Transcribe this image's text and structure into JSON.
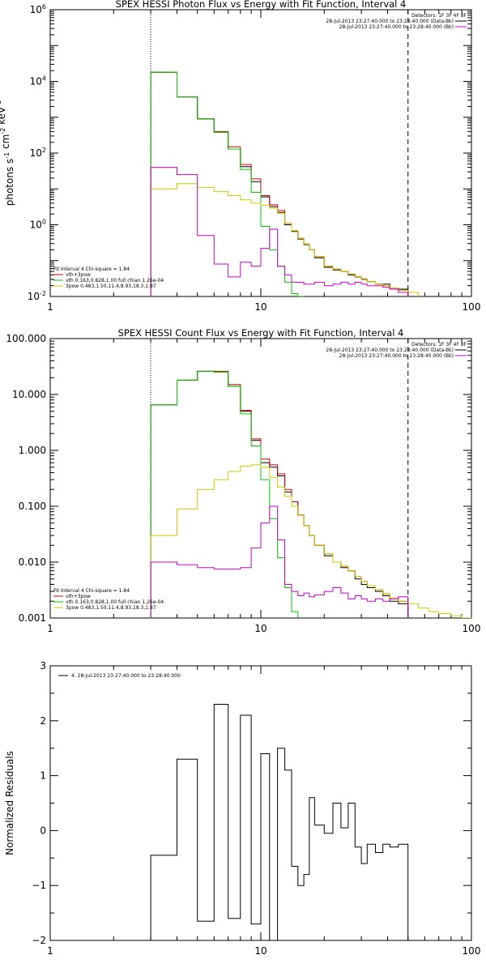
{
  "chart_data": [
    {
      "type": "line",
      "title": "SPEX HESSI Photon Flux vs Energy with Fit Function, Interval 4",
      "ylabel": "photons s^-1 cm^-2 keV^-1",
      "xlabel": "",
      "xscale": "log",
      "yscale": "log",
      "xlim": [
        1,
        100
      ],
      "ylim": [
        0.01,
        1000000
      ],
      "x_ticks": [
        {
          "v": 1,
          "label": "1"
        },
        {
          "v": 10,
          "label": "10"
        },
        {
          "v": 100,
          "label": "100"
        }
      ],
      "y_ticks": [
        {
          "v": 0.01,
          "label": "10^-2"
        },
        {
          "v": 1,
          "label": "10^0"
        },
        {
          "v": 100,
          "label": "10^2"
        },
        {
          "v": 10000,
          "label": "10^4"
        },
        {
          "v": 1000000,
          "label": "10^6"
        }
      ],
      "vlines": [
        {
          "x": 3,
          "style": "dotted",
          "color": "#000000"
        },
        {
          "x": 50,
          "style": "dashed",
          "color": "#000000"
        }
      ],
      "legend_tr": [
        "Detectors: 1F 3F 4F 8F",
        "28-Jul-2013 23:27:40.000 to 23:28:40.000 (Data-Bk)",
        "28-Jul-2013 23:27:40.000 to 23:28:40.000 (Bk)"
      ],
      "legend_bl": [
        "Fit Interval 4   Chi-square = 1.84",
        "vth+3pow",
        "vth 0.163,0.828,1.00  full chian 1.26e-04",
        "3pow 0.483,1.50,11.4,8.93,18.3,1.87"
      ],
      "series": [
        {
          "name": "Data-Bk",
          "color": "#000000",
          "edges": [
            3,
            4,
            5,
            6,
            7,
            8,
            9,
            10,
            11,
            12,
            13,
            14,
            15,
            16,
            17,
            18,
            20,
            22,
            24,
            26,
            28,
            30,
            32,
            35,
            38,
            41,
            45,
            50
          ],
          "values": [
            18000,
            3700,
            900,
            380,
            130,
            42,
            16,
            6,
            3.2,
            2.2,
            1,
            0.65,
            0.4,
            0.28,
            0.2,
            0.12,
            0.065,
            0.055,
            0.05,
            0.04,
            0.035,
            0.03,
            0.026,
            0.022,
            0.022,
            0.016,
            0.016
          ]
        },
        {
          "name": "vth+3pow",
          "color": "#cc0000",
          "edges": [
            3,
            4,
            5,
            6,
            7,
            8,
            9,
            10,
            11,
            12,
            13,
            14,
            15,
            16,
            17,
            18,
            20,
            22,
            24,
            26,
            28,
            30,
            32,
            35,
            38,
            41,
            45,
            50
          ],
          "values": [
            18000,
            3700,
            900,
            400,
            150,
            48,
            19,
            6.5,
            3.6,
            2.5,
            1.1,
            0.68,
            0.42,
            0.29,
            0.2,
            0.13,
            0.07,
            0.058,
            0.05,
            0.042,
            0.036,
            0.031,
            0.026,
            0.022,
            0.02,
            0.017,
            0.015
          ]
        },
        {
          "name": "vth",
          "color": "#00cc00",
          "edges": [
            3,
            4,
            5,
            6,
            7,
            8,
            9,
            10,
            11,
            12,
            13,
            14,
            15,
            16
          ],
          "values": [
            18000,
            3700,
            900,
            380,
            130,
            35,
            8,
            0.9,
            0.2,
            0.07,
            0.025,
            0.012,
            0.006
          ]
        },
        {
          "name": "3pow",
          "color": "#cccc00",
          "edges": [
            3,
            4,
            5,
            6,
            7,
            8,
            9,
            10,
            11,
            12,
            13,
            14,
            15,
            16,
            17,
            18,
            20,
            22,
            24,
            26,
            28,
            30,
            32,
            35,
            38,
            41,
            45,
            50,
            56
          ],
          "values": [
            10,
            14,
            11,
            8.5,
            6.5,
            5,
            4,
            3.5,
            2.9,
            2.1,
            1.1,
            0.68,
            0.42,
            0.29,
            0.2,
            0.13,
            0.07,
            0.058,
            0.05,
            0.042,
            0.036,
            0.031,
            0.026,
            0.022,
            0.02,
            0.017,
            0.015,
            0.013
          ]
        },
        {
          "name": "Bk",
          "color": "#cc00cc",
          "edges": [
            3,
            4,
            5,
            6,
            7,
            8,
            9,
            10,
            11,
            12,
            13,
            14,
            15,
            16,
            17,
            18,
            20,
            22,
            24,
            26,
            28,
            30,
            32,
            35,
            38,
            41,
            45,
            50
          ],
          "values": [
            40,
            25,
            0.5,
            0.08,
            0.035,
            0.09,
            0.07,
            0.22,
            0.75,
            0.07,
            0.04,
            0.025,
            0.025,
            0.022,
            0.022,
            0.025,
            0.02,
            0.022,
            0.025,
            0.022,
            0.025,
            0.022,
            0.02,
            0.02,
            0.018,
            0.016,
            0.013
          ]
        }
      ]
    },
    {
      "type": "line",
      "title": "SPEX HESSI Count Flux vs Energy with Fit Function, Interval 4",
      "ylabel": "",
      "xlabel": "",
      "xscale": "log",
      "yscale": "log",
      "xlim": [
        1,
        100
      ],
      "ylim": [
        0.001,
        100
      ],
      "x_ticks": [
        {
          "v": 1,
          "label": "1"
        },
        {
          "v": 10,
          "label": "10"
        },
        {
          "v": 100,
          "label": "100"
        }
      ],
      "y_ticks": [
        {
          "v": 0.001,
          "label": "0.001"
        },
        {
          "v": 0.01,
          "label": "0.010"
        },
        {
          "v": 0.1,
          "label": "0.100"
        },
        {
          "v": 1,
          "label": "1.000"
        },
        {
          "v": 10,
          "label": "10.000"
        },
        {
          "v": 100,
          "label": "100.000"
        }
      ],
      "vlines": [
        {
          "x": 3,
          "style": "dotted",
          "color": "#000000"
        },
        {
          "x": 50,
          "style": "dashed",
          "color": "#000000"
        }
      ],
      "legend_tr": [
        "Detectors: 1F 3F 4F 8F",
        "28-Jul-2013 23:27:40.000 to 23:28:40.000 (Data-Bk)",
        "28-Jul-2013 23:27:40.000 to 23:28:40.000 (Bk)"
      ],
      "legend_bl": [
        "Fit Interval 4   Chi-square = 1.84",
        "vth+3pow",
        "vth 0.163,0.828,1.00  full chian 1.26e-04",
        "3pow 0.483,1.50,11.4,8.93,18.3,1.87"
      ],
      "series": [
        {
          "name": "Data-Bk",
          "color": "#000000",
          "edges": [
            3,
            4,
            5,
            6,
            7,
            8,
            9,
            10,
            11,
            12,
            13,
            14,
            15,
            16,
            17,
            18,
            20,
            22,
            24,
            26,
            28,
            30,
            32,
            35,
            38,
            41,
            45,
            50
          ],
          "values": [
            6.5,
            18,
            26,
            25,
            14,
            5,
            1.5,
            0.6,
            0.5,
            0.35,
            0.18,
            0.12,
            0.07,
            0.045,
            0.03,
            0.02,
            0.013,
            0.01,
            0.008,
            0.007,
            0.005,
            0.004,
            0.0035,
            0.003,
            0.0025,
            0.002,
            0.0018
          ]
        },
        {
          "name": "vth+3pow",
          "color": "#cc0000",
          "edges": [
            3,
            4,
            5,
            6,
            7,
            8,
            9,
            10,
            11,
            12,
            13,
            14,
            15,
            16,
            17,
            18,
            20,
            22,
            24,
            26,
            28,
            30,
            32,
            35,
            38,
            41,
            45,
            50
          ],
          "values": [
            6.5,
            18,
            26,
            26,
            15,
            5.2,
            1.6,
            0.7,
            0.55,
            0.38,
            0.2,
            0.12,
            0.07,
            0.045,
            0.03,
            0.02,
            0.014,
            0.01,
            0.0085,
            0.007,
            0.0055,
            0.0045,
            0.0038,
            0.0032,
            0.0027,
            0.0023,
            0.002
          ]
        },
        {
          "name": "vth",
          "color": "#00cc00",
          "edges": [
            3,
            4,
            5,
            6,
            7,
            8,
            9,
            10,
            11,
            12,
            13,
            14,
            15
          ],
          "values": [
            6.5,
            18,
            26,
            25,
            14,
            4.5,
            1.2,
            0.3,
            0.06,
            0.012,
            0.0035,
            0.0013
          ]
        },
        {
          "name": "3pow",
          "color": "#cccc00",
          "edges": [
            3,
            4,
            5,
            6,
            7,
            8,
            9,
            10,
            11,
            12,
            13,
            14,
            15,
            16,
            17,
            18,
            20,
            22,
            24,
            26,
            28,
            30,
            32,
            35,
            38,
            41,
            45,
            50,
            56,
            63,
            70,
            80,
            90,
            100
          ],
          "values": [
            0.03,
            0.09,
            0.2,
            0.3,
            0.42,
            0.52,
            0.55,
            0.5,
            0.33,
            0.22,
            0.15,
            0.1,
            0.07,
            0.045,
            0.03,
            0.02,
            0.014,
            0.01,
            0.0085,
            0.007,
            0.0055,
            0.0045,
            0.0038,
            0.0032,
            0.0027,
            0.0023,
            0.002,
            0.0018,
            0.0015,
            0.0013,
            0.0012,
            0.0011,
            0.001
          ]
        },
        {
          "name": "Bk",
          "color": "#cc00cc",
          "edges": [
            3,
            4,
            5,
            6,
            7,
            8,
            9,
            10,
            11,
            12,
            13,
            14,
            15,
            16,
            17,
            18,
            20,
            22,
            24,
            26,
            28,
            30,
            32,
            35,
            38,
            41,
            45,
            50
          ],
          "values": [
            0.01,
            0.009,
            0.008,
            0.0075,
            0.0075,
            0.008,
            0.018,
            0.05,
            0.1,
            0.025,
            0.004,
            0.003,
            0.0025,
            0.0028,
            0.0024,
            0.0026,
            0.003,
            0.0035,
            0.0028,
            0.0022,
            0.0025,
            0.0022,
            0.002,
            0.0022,
            0.002,
            0.0022,
            0.0024
          ]
        }
      ]
    },
    {
      "type": "line",
      "title": "",
      "ylabel": "Normalized Residuals",
      "xlabel": "",
      "xscale": "log",
      "yscale": "linear",
      "xlim": [
        1,
        100
      ],
      "ylim": [
        -2,
        3
      ],
      "x_ticks": [
        {
          "v": 1,
          "label": "1"
        },
        {
          "v": 10,
          "label": "10"
        },
        {
          "v": 100,
          "label": "100"
        }
      ],
      "y_ticks": [
        {
          "v": -2,
          "label": "−2"
        },
        {
          "v": -1,
          "label": "−1"
        },
        {
          "v": 0,
          "label": "0"
        },
        {
          "v": 1,
          "label": "1"
        },
        {
          "v": 2,
          "label": "2"
        },
        {
          "v": 3,
          "label": "3"
        }
      ],
      "vlines": [],
      "legend_tr": [],
      "legend_bl": [],
      "legend_tl": [
        "4. 28-Jul-2013 23:27:40.000 to 23:28:40.000"
      ],
      "series": [
        {
          "name": "4. 28-Jul-2013 23:27:40.000 to 23:28:40.000",
          "color": "#000000",
          "edges": [
            3,
            4,
            5,
            6,
            7,
            8,
            9,
            10,
            11,
            12,
            13,
            14,
            15,
            16,
            17,
            18,
            20,
            22,
            24,
            26,
            28,
            30,
            32,
            35,
            38,
            41,
            45,
            50
          ],
          "values": [
            -0.45,
            1.3,
            -1.65,
            2.3,
            -1.6,
            2.1,
            -1.7,
            1.4,
            -2.0,
            1.5,
            1.1,
            -0.65,
            -1.0,
            -0.8,
            0.6,
            0.1,
            -0.05,
            0.5,
            0.05,
            0.5,
            -0.3,
            -0.6,
            -0.25,
            -0.4,
            -0.25,
            -0.3,
            -0.25
          ]
        }
      ]
    }
  ]
}
